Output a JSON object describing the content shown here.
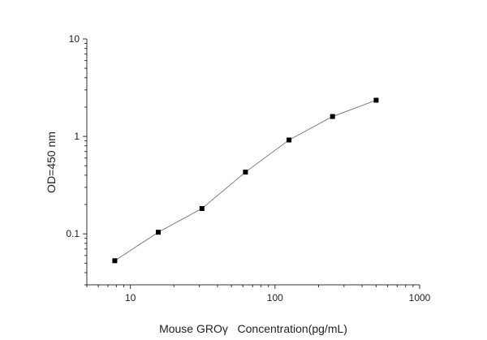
{
  "chart_data": {
    "type": "line",
    "xlabel": "Mouse GROγ   Concentration(pg/mL)",
    "ylabel": "OD=450 nm",
    "x_scale": "log",
    "y_scale": "log",
    "xlim": [
      5,
      1000
    ],
    "ylim": [
      0.03,
      10
    ],
    "x_ticks": [
      {
        "value": 10,
        "label": "10"
      },
      {
        "value": 100,
        "label": "100"
      },
      {
        "value": 1000,
        "label": "1000"
      }
    ],
    "y_ticks": [
      {
        "value": 0.1,
        "label": "0.1"
      },
      {
        "value": 1,
        "label": "1"
      },
      {
        "value": 10,
        "label": "10"
      }
    ],
    "grid": false,
    "series": [
      {
        "marker": "square",
        "color": "#000000",
        "line_color": "#7f7f7f",
        "points": [
          {
            "x": 7.8,
            "y": 0.053
          },
          {
            "x": 15.6,
            "y": 0.104
          },
          {
            "x": 31.25,
            "y": 0.182
          },
          {
            "x": 62.5,
            "y": 0.43
          },
          {
            "x": 125,
            "y": 0.92
          },
          {
            "x": 250,
            "y": 1.6
          },
          {
            "x": 500,
            "y": 2.35
          }
        ]
      }
    ]
  }
}
